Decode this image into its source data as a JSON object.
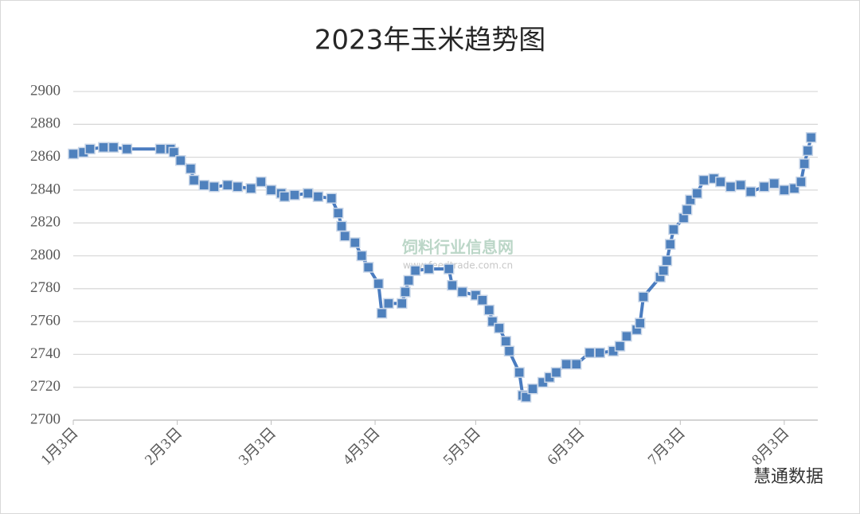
{
  "chart_data": {
    "type": "line",
    "title": "2023年玉米趋势图",
    "x": [
      0,
      3,
      5,
      9,
      12,
      16,
      26,
      29,
      30,
      32,
      35,
      36,
      39,
      42,
      46,
      49,
      53,
      56,
      59,
      62,
      63,
      66,
      70,
      73,
      77,
      79,
      80,
      81,
      84,
      86,
      88,
      91,
      92,
      94,
      98,
      99,
      100,
      102,
      106,
      112,
      113,
      116,
      120,
      122,
      124,
      125,
      127,
      129,
      130,
      133,
      134,
      135,
      137,
      140,
      142,
      144,
      147,
      150,
      154,
      157,
      161,
      163,
      165,
      168,
      169,
      170,
      175,
      176,
      177,
      178,
      179,
      182,
      183,
      184,
      186,
      188,
      191,
      193,
      196,
      199,
      202,
      206,
      209,
      212,
      215,
      217,
      218,
      219,
      220
    ],
    "values": [
      2862,
      2863,
      2865,
      2866,
      2866,
      2865,
      2865,
      2865,
      2863,
      2858,
      2853,
      2846,
      2843,
      2842,
      2843,
      2842,
      2841,
      2845,
      2840,
      2838,
      2836,
      2837,
      2838,
      2836,
      2835,
      2826,
      2818,
      2812,
      2808,
      2800,
      2793,
      2783,
      2765,
      2771,
      2771,
      2778,
      2785,
      2791,
      2792,
      2792,
      2782,
      2778,
      2776,
      2773,
      2767,
      2760,
      2756,
      2748,
      2742,
      2729,
      2715,
      2714,
      2719,
      2723,
      2726,
      2729,
      2734,
      2734,
      2741,
      2741,
      2742,
      2745,
      2751,
      2755,
      2759,
      2775,
      2787,
      2791,
      2797,
      2807,
      2816,
      2823,
      2828,
      2834,
      2838,
      2846,
      2847,
      2845,
      2842,
      2843,
      2839,
      2842,
      2844,
      2840,
      2841,
      2845,
      2856,
      2864,
      2872
    ],
    "color": "#4a7cc0",
    "xlim": [
      0,
      222
    ],
    "xticks": [
      {
        "value": 0,
        "label": "1月3日"
      },
      {
        "value": 31,
        "label": "2月3日"
      },
      {
        "value": 59,
        "label": "3月3日"
      },
      {
        "value": 90,
        "label": "4月3日"
      },
      {
        "value": 120,
        "label": "5月3日"
      },
      {
        "value": 151,
        "label": "6月3日"
      },
      {
        "value": 181,
        "label": "7月3日"
      },
      {
        "value": 212,
        "label": "8月3日"
      }
    ],
    "ylim": [
      2700,
      2900
    ],
    "yticks": [
      2700,
      2720,
      2740,
      2760,
      2780,
      2800,
      2820,
      2840,
      2860,
      2880,
      2900
    ],
    "grid": true,
    "annotations": [
      "饲料行业信息网",
      "www.feedtrade.com.cn",
      "慧通数据"
    ]
  }
}
